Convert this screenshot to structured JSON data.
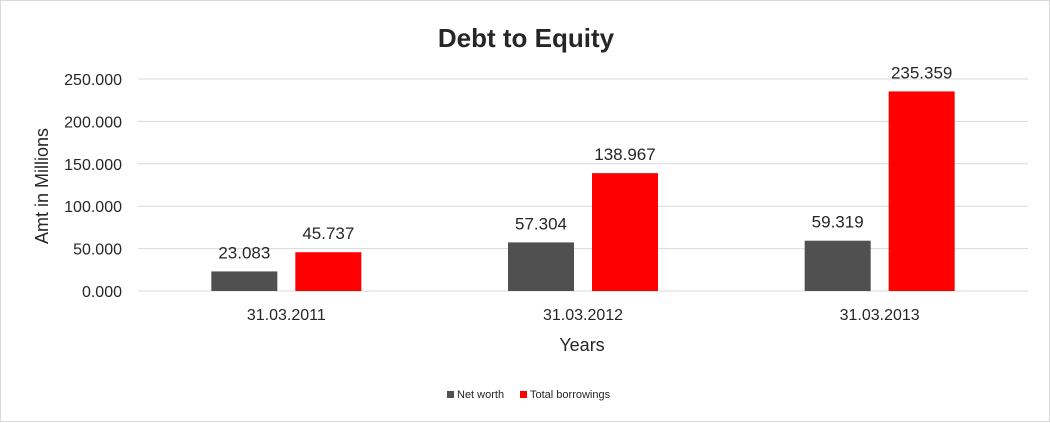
{
  "chart_data": {
    "type": "bar",
    "title": "Debt to Equity",
    "xlabel": "Years",
    "ylabel": "Amt in Millions",
    "categories": [
      "31.03.2011",
      "31.03.2012",
      "31.03.2013"
    ],
    "series": [
      {
        "name": "Net worth",
        "values": [
          23.083,
          57.304,
          59.319
        ],
        "color": "#505050"
      },
      {
        "name": "Total borrowings",
        "values": [
          45.737,
          138.967,
          235.359
        ],
        "color": "#ff0000"
      }
    ],
    "value_labels": [
      [
        "23.083",
        "57.304",
        "59.319"
      ],
      [
        "45.737",
        "138.967",
        "235.359"
      ]
    ],
    "ylim": [
      0,
      250
    ],
    "yticks": [
      0,
      50,
      100,
      150,
      200,
      250
    ],
    "ytick_labels": [
      "0.000",
      "50.000",
      "100.000",
      "150.000",
      "200.000",
      "250.000"
    ],
    "grid": true,
    "legend_position": "bottom"
  }
}
